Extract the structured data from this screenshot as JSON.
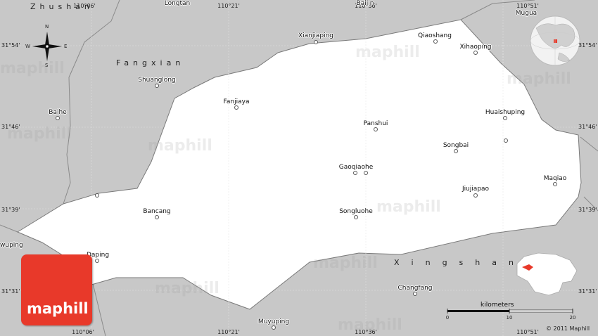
{
  "region_labels": {
    "zhushan": "Zhushan",
    "fangxian": "Fangxian",
    "xingshan": "Xingshan"
  },
  "places": [
    {
      "name": "Longtan"
    },
    {
      "name": "Baijin"
    },
    {
      "name": "Mugua"
    },
    {
      "name": "Xianjiaping"
    },
    {
      "name": "Qiaoshang"
    },
    {
      "name": "Xihaoping"
    },
    {
      "name": "Shuanglong"
    },
    {
      "name": "Fanjiaya"
    },
    {
      "name": "Baihe"
    },
    {
      "name": "Panshui"
    },
    {
      "name": "Huaishuping"
    },
    {
      "name": "Songbai"
    },
    {
      "name": "Gaoqiaohe"
    },
    {
      "name": "Jiujiapao"
    },
    {
      "name": "Maqiao"
    },
    {
      "name": "Bancang"
    },
    {
      "name": "Songluohe"
    },
    {
      "name": "Daping"
    },
    {
      "name": "Changfang"
    },
    {
      "name": "Muyuping"
    },
    {
      "name": "wuping"
    }
  ],
  "coordinates": {
    "top_lon": [
      "110°06'",
      "110°21'",
      "110°36'",
      "110°51'"
    ],
    "bottom_lon": [
      "110°06'",
      "110°21'",
      "110°36'",
      "110°51'"
    ],
    "left_lat": [
      "31°54'",
      "31°46'",
      "31°39'",
      "31°31'"
    ],
    "right_lat": [
      "31°54'",
      "31°46'",
      "31°39'",
      "31°31'"
    ]
  },
  "compass": {
    "n": "N",
    "s": "S",
    "e": "E",
    "w": "W"
  },
  "watermark": "maphill",
  "logo_text": "maphill",
  "scale": {
    "title": "kilometers",
    "ticks": [
      "0",
      "10",
      "20"
    ]
  },
  "copyright": "© 2011 Maphill",
  "colors": {
    "background": "#c8c8c8",
    "highlight_region": "#ffffff",
    "logo": "#e8392a",
    "locator_red": "#e8392a"
  }
}
